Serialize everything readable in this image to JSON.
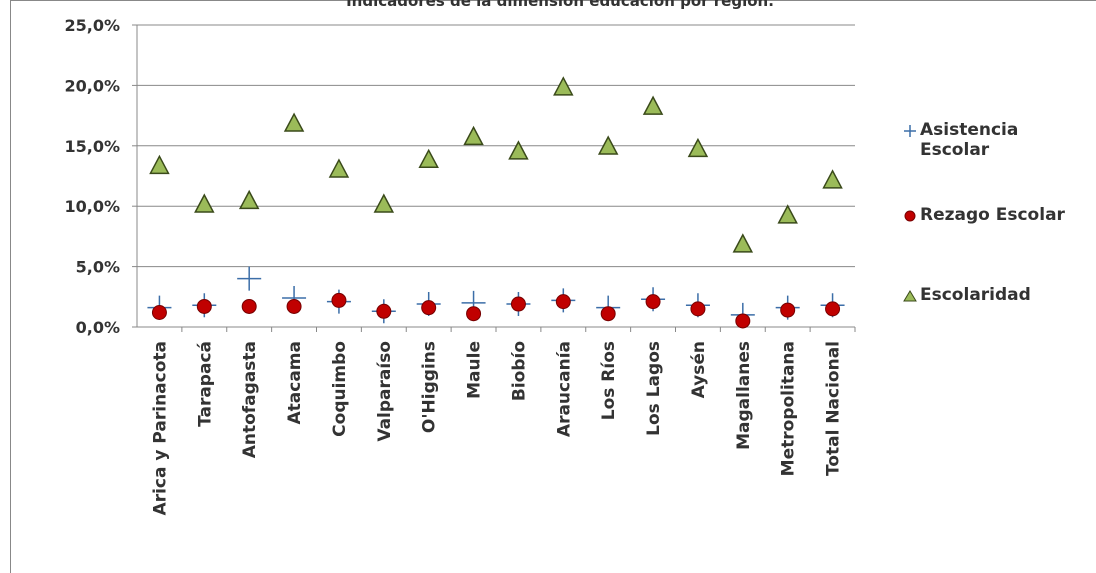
{
  "chart_data": {
    "type": "marker",
    "title": "Indicadores de la dimensión educación por región.",
    "categories": [
      "Arica y Parinacota",
      "Tarapacá",
      "Antofagasta",
      "Atacama",
      "Coquimbo",
      "Valparaíso",
      "O'Higgins",
      "Maule",
      "Biobío",
      "Araucanía",
      "Los Ríos",
      "Los Lagos",
      "Aysén",
      "Magallanes",
      "Metropolitana",
      "Total Nacional"
    ],
    "series": [
      {
        "name": "Asistencia Escolar",
        "marker": "plus",
        "color": "#3c6ea8",
        "values": [
          1.6,
          1.8,
          4.0,
          2.4,
          2.1,
          1.3,
          1.9,
          2.0,
          1.9,
          2.2,
          1.6,
          2.3,
          1.8,
          1.0,
          1.6,
          1.8
        ]
      },
      {
        "name": "Rezago Escolar",
        "marker": "circle",
        "color": "#c00000",
        "values": [
          1.2,
          1.7,
          1.7,
          1.7,
          2.2,
          1.3,
          1.6,
          1.1,
          1.9,
          2.1,
          1.1,
          2.1,
          1.5,
          0.5,
          1.4,
          1.5
        ]
      },
      {
        "name": "Escolaridad",
        "marker": "triangle",
        "color": "#9bbb59",
        "values": [
          13.3,
          10.1,
          10.4,
          16.8,
          13.0,
          10.1,
          13.8,
          15.7,
          14.5,
          19.8,
          14.9,
          18.2,
          14.7,
          6.8,
          9.2,
          12.1
        ]
      }
    ],
    "ylim": [
      0,
      25
    ],
    "yticks": [
      {
        "value": 0,
        "label": "0,0%"
      },
      {
        "value": 5,
        "label": "5,0%"
      },
      {
        "value": 10,
        "label": "10,0%"
      },
      {
        "value": 15,
        "label": "15,0%"
      },
      {
        "value": 20,
        "label": "20,0%"
      },
      {
        "value": 25,
        "label": "25,0%"
      }
    ],
    "grid": true
  }
}
